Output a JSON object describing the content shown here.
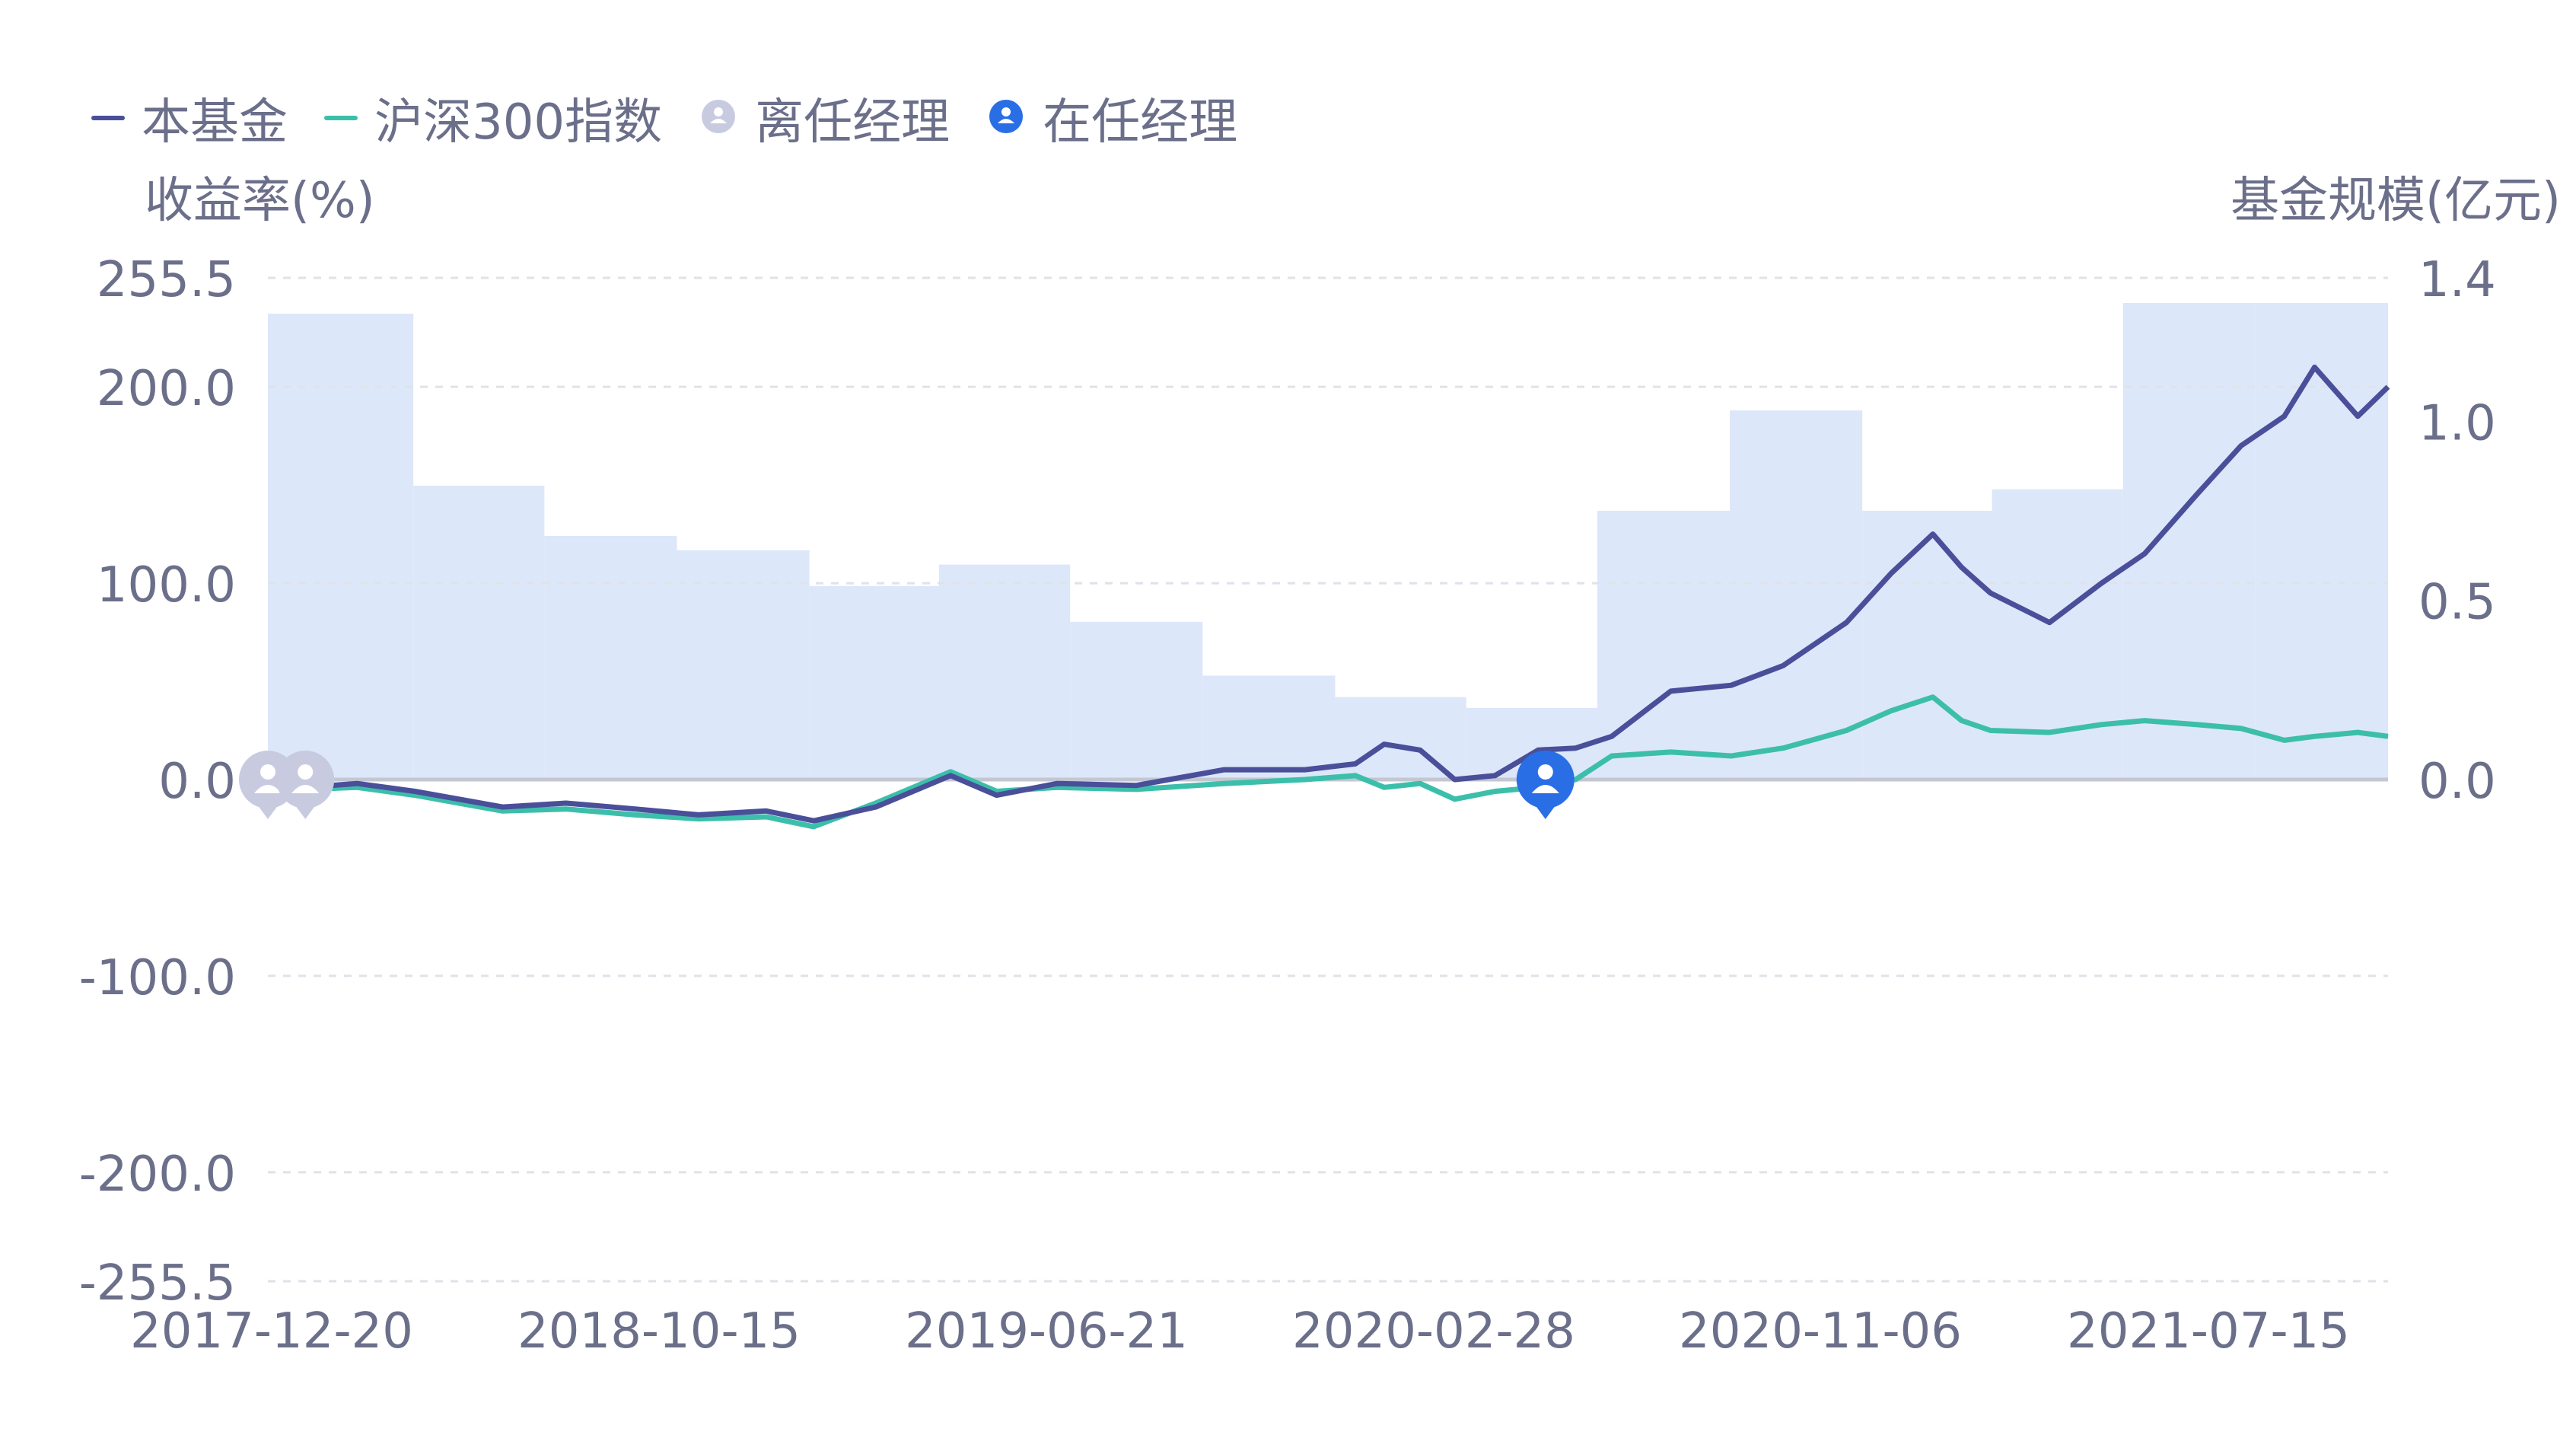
{
  "legend": {
    "fund": "本基金",
    "index": "沪深300指数",
    "former_manager": "离任经理",
    "current_manager": "在任经理"
  },
  "colors": {
    "fund": "#4a4f9a",
    "index": "#3cbfaa",
    "scale_area": "#dde7fa",
    "former_manager": "#c8cbe0",
    "current_manager": "#2a6ee6",
    "grid": "#e0e2ea",
    "zero_line": "#c4c6d2",
    "tick_text": "#6b6f8a"
  },
  "chart_data": {
    "type": "line",
    "left_axis_title": "收益率(%)",
    "right_axis_title": "基金规模(亿元)",
    "y_left_ticks": [
      "255.5",
      "200.0",
      "100.0",
      "0.0",
      "-100.0",
      "-200.0",
      "-255.5"
    ],
    "y_left_tick_values": [
      255.5,
      200,
      100,
      0,
      -100,
      -200,
      -255.5
    ],
    "y_left_range": [
      -255.5,
      255.5
    ],
    "y_right_ticks": [
      "1.4",
      "1.0",
      "0.5",
      "0.0"
    ],
    "y_right_tick_values": [
      1.4,
      1.0,
      0.5,
      0.0
    ],
    "y_right_range": [
      -1.4,
      1.4
    ],
    "x_ticks": [
      "2017-12-20",
      "2018-10-15",
      "2019-06-21",
      "2020-02-28",
      "2020-11-06",
      "2021-07-15"
    ],
    "x_range": [
      "2017-12-20",
      "2021-12-31"
    ],
    "grid": "horizontal-dashed",
    "legend_position": "top-left",
    "series": [
      {
        "name": "本基金",
        "x": [
          "2017-12-20",
          "2018-01-15",
          "2018-02-20",
          "2018-04-01",
          "2018-06-01",
          "2018-07-15",
          "2018-09-01",
          "2018-10-15",
          "2018-12-01",
          "2019-01-03",
          "2019-02-15",
          "2019-04-08",
          "2019-05-10",
          "2019-06-21",
          "2019-08-15",
          "2019-10-15",
          "2019-12-10",
          "2020-01-14",
          "2020-02-03",
          "2020-02-28",
          "2020-03-23",
          "2020-04-20",
          "2020-05-20",
          "2020-06-15",
          "2020-07-10",
          "2020-08-20",
          "2020-10-01",
          "2020-11-06",
          "2020-12-20",
          "2021-01-20",
          "2021-02-18",
          "2021-03-10",
          "2021-03-30",
          "2021-05-10",
          "2021-06-15",
          "2021-07-15",
          "2021-08-20",
          "2021-09-20",
          "2021-10-20",
          "2021-11-10",
          "2021-12-10",
          "2021-12-31"
        ],
        "y": [
          0,
          -4,
          -2,
          -6,
          -14,
          -12,
          -15,
          -18,
          -16,
          -21,
          -14,
          2,
          -8,
          -2,
          -3,
          5,
          5,
          8,
          18,
          15,
          0,
          2,
          15,
          16,
          22,
          45,
          48,
          58,
          80,
          105,
          125,
          108,
          95,
          80,
          100,
          115,
          145,
          170,
          185,
          210,
          185,
          200
        ]
      },
      {
        "name": "沪深300指数",
        "x": [
          "2017-12-20",
          "2018-01-15",
          "2018-02-20",
          "2018-04-01",
          "2018-06-01",
          "2018-07-15",
          "2018-09-01",
          "2018-10-15",
          "2018-12-01",
          "2019-01-03",
          "2019-02-15",
          "2019-04-08",
          "2019-05-10",
          "2019-06-21",
          "2019-08-15",
          "2019-10-15",
          "2019-12-10",
          "2020-01-14",
          "2020-02-03",
          "2020-02-28",
          "2020-03-23",
          "2020-04-20",
          "2020-05-20",
          "2020-06-15",
          "2020-07-10",
          "2020-08-20",
          "2020-10-01",
          "2020-11-06",
          "2020-12-20",
          "2021-01-20",
          "2021-02-18",
          "2021-03-10",
          "2021-03-30",
          "2021-05-10",
          "2021-06-15",
          "2021-07-15",
          "2021-08-20",
          "2021-09-20",
          "2021-10-20",
          "2021-11-10",
          "2021-12-10",
          "2021-12-31"
        ],
        "y": [
          0,
          -5,
          -4,
          -8,
          -16,
          -15,
          -18,
          -20,
          -19,
          -24,
          -12,
          4,
          -6,
          -4,
          -5,
          -2,
          0,
          2,
          -4,
          -2,
          -10,
          -6,
          -4,
          0,
          12,
          14,
          12,
          16,
          25,
          35,
          42,
          30,
          25,
          24,
          28,
          30,
          28,
          26,
          20,
          22,
          24,
          22
        ]
      }
    ],
    "scale_bars": {
      "name": "基金规模",
      "start": [
        "2017-12-20",
        "2018-03-31",
        "2018-06-30",
        "2018-09-30",
        "2018-12-31",
        "2019-03-31",
        "2019-06-30",
        "2019-09-30",
        "2019-12-31",
        "2020-03-31",
        "2020-06-30",
        "2020-09-30",
        "2020-12-31",
        "2021-03-31",
        "2021-06-30",
        "2021-09-30"
      ],
      "end": [
        "2018-03-31",
        "2018-06-30",
        "2018-09-30",
        "2018-12-31",
        "2019-03-31",
        "2019-06-30",
        "2019-09-30",
        "2019-12-31",
        "2020-03-31",
        "2020-06-30",
        "2020-09-30",
        "2020-12-31",
        "2021-03-31",
        "2021-06-30",
        "2021-09-30",
        "2021-12-31"
      ],
      "values": [
        1.3,
        0.82,
        0.68,
        0.64,
        0.54,
        0.6,
        0.44,
        0.29,
        0.23,
        0.2,
        0.75,
        1.03,
        0.75,
        0.81,
        1.33,
        1.33
      ]
    },
    "manager_markers": [
      {
        "date": "2017-12-20",
        "status": "离任经理"
      },
      {
        "date": "2018-01-15",
        "status": "离任经理"
      },
      {
        "date": "2020-05-25",
        "status": "在任经理"
      }
    ]
  }
}
